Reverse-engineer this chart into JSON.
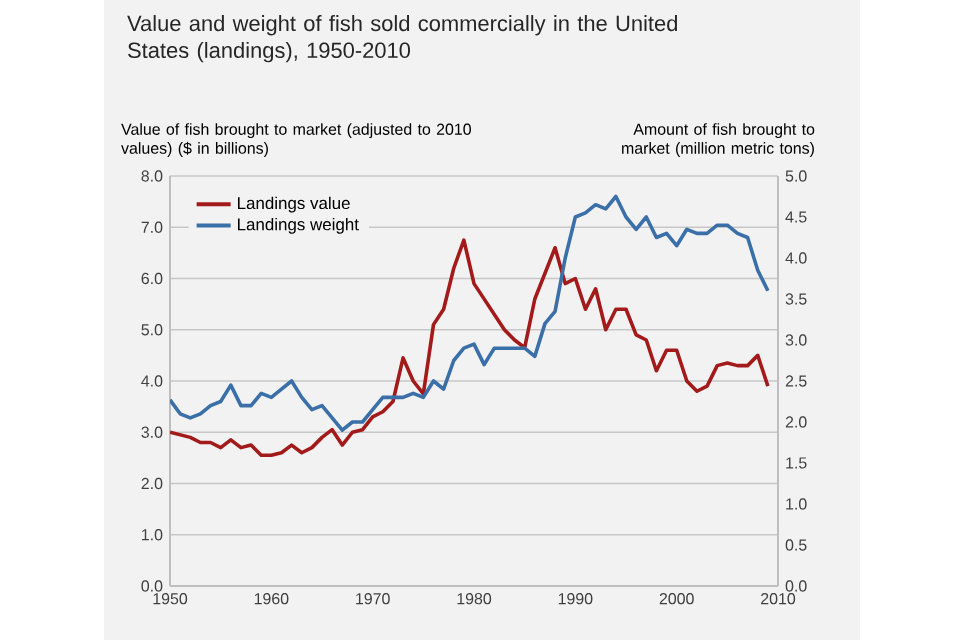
{
  "chart_data": {
    "type": "line",
    "title": "Value and weight of fish sold commercially in the United States (landings), 1950-2010",
    "ylabel": "Value of fish brought to market (adjusted to 2010 values) ($ in billions)",
    "y2label": "Amount of fish brought to market (million metric tons)",
    "x": [
      1950,
      1951,
      1952,
      1953,
      1954,
      1955,
      1956,
      1957,
      1958,
      1959,
      1960,
      1961,
      1962,
      1963,
      1964,
      1965,
      1966,
      1967,
      1968,
      1969,
      1970,
      1971,
      1972,
      1973,
      1974,
      1975,
      1976,
      1977,
      1978,
      1979,
      1980,
      1981,
      1982,
      1983,
      1984,
      1985,
      1986,
      1987,
      1988,
      1989,
      1990,
      1991,
      1992,
      1993,
      1994,
      1995,
      1996,
      1997,
      1998,
      1999,
      2000,
      2001,
      2002,
      2003,
      2004,
      2005,
      2006,
      2007,
      2008,
      2009
    ],
    "series": [
      {
        "name": "Landings value",
        "color": "#a31a1a",
        "values": [
          3.0,
          2.95,
          2.9,
          2.8,
          2.8,
          2.7,
          2.85,
          2.7,
          2.75,
          2.55,
          2.55,
          2.6,
          2.75,
          2.6,
          2.7,
          2.9,
          3.05,
          2.75,
          3.0,
          3.05,
          3.3,
          3.4,
          3.6,
          4.45,
          4.0,
          3.75,
          5.1,
          5.4,
          6.2,
          6.75,
          5.9,
          5.6,
          5.3,
          5.0,
          4.8,
          4.65,
          5.6,
          6.1,
          6.6,
          5.9,
          6.0,
          5.4,
          5.8,
          5.0,
          5.4,
          5.4,
          4.9,
          4.8,
          4.2,
          4.6,
          4.6,
          4.0,
          3.8,
          3.9,
          4.3,
          4.35,
          4.3,
          4.3,
          4.5,
          3.9
        ]
      },
      {
        "name": "Landings weight",
        "color": "#3a6fa8",
        "axis": "y2",
        "values": [
          2.27,
          2.1,
          2.05,
          2.1,
          2.2,
          2.25,
          2.45,
          2.2,
          2.2,
          2.35,
          2.3,
          2.4,
          2.5,
          2.3,
          2.15,
          2.2,
          2.05,
          1.9,
          2.0,
          2.0,
          2.15,
          2.3,
          2.3,
          2.3,
          2.35,
          2.3,
          2.5,
          2.4,
          2.75,
          2.9,
          2.95,
          2.7,
          2.9,
          2.9,
          2.9,
          2.9,
          2.8,
          3.2,
          3.35,
          4.0,
          4.5,
          4.55,
          4.65,
          4.6,
          4.75,
          4.5,
          4.35,
          4.5,
          4.25,
          4.3,
          4.15,
          4.35,
          4.3,
          4.3,
          4.4,
          4.4,
          4.3,
          4.25,
          3.85,
          3.6
        ]
      }
    ],
    "xlim": [
      1950,
      2010
    ],
    "xticks": [
      1950,
      1960,
      1970,
      1980,
      1990,
      2000,
      2010
    ],
    "ylim": [
      0,
      8
    ],
    "yticks": [
      {
        "value": 0,
        "label": "0.0"
      },
      {
        "value": 1,
        "label": "1.0"
      },
      {
        "value": 2,
        "label": "2.0"
      },
      {
        "value": 3,
        "label": "3.0"
      },
      {
        "value": 4,
        "label": "4.0"
      },
      {
        "value": 5,
        "label": "5.0"
      },
      {
        "value": 6,
        "label": "6.0"
      },
      {
        "value": 7,
        "label": "7.0"
      },
      {
        "value": 8,
        "label": "8.0"
      }
    ],
    "y2lim": [
      0,
      5
    ],
    "y2ticks": [
      {
        "value": 0,
        "label": "0.0"
      },
      {
        "value": 0.5,
        "label": "0.5"
      },
      {
        "value": 1,
        "label": "1.0"
      },
      {
        "value": 1.5,
        "label": "1.5"
      },
      {
        "value": 2,
        "label": "2.0"
      },
      {
        "value": 2.5,
        "label": "2.5"
      },
      {
        "value": 3,
        "label": "3.0"
      },
      {
        "value": 3.5,
        "label": "3.5"
      },
      {
        "value": 4,
        "label": "4.0"
      },
      {
        "value": 4.5,
        "label": "4.5"
      },
      {
        "value": 5,
        "label": "5.0"
      }
    ],
    "grid": "y",
    "legend": "top left",
    "line_style": "solid",
    "marker": "none"
  }
}
